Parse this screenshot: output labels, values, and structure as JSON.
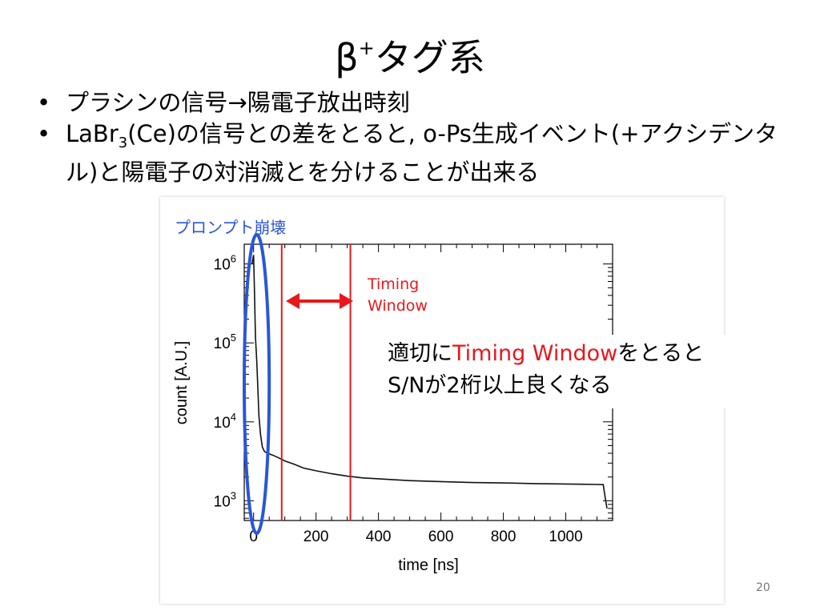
{
  "slide": {
    "title_main": "β",
    "title_sup": "+",
    "title_rest": "タグ系",
    "bullets": [
      {
        "text": "プラシンの信号→陽電子放出時刻"
      },
      {
        "text_a": "LaBr",
        "sub": "3",
        "text_b": "(Ce)の信号との差をとると, o-Ps生成イベント(+アクシデンタル)と陽電子の対消滅とを分けることが出来る"
      }
    ],
    "page_number": "20"
  },
  "annotations": {
    "prompt_label": "プロンプト崩壊",
    "timing_window": [
      "Timing",
      "Window"
    ],
    "callout": {
      "pre": "適切に",
      "red": "Timing Window",
      "post": "をとると",
      "line2": "S/Nが2桁以上良くなる"
    },
    "colors": {
      "prompt": "#2a56d8",
      "timing": "#e8171c"
    }
  },
  "chart_data": {
    "type": "line",
    "xlabel": "time [ns]",
    "ylabel": "count [A.U.]",
    "xlim": [
      -30,
      1150
    ],
    "ylim_log10": [
      2.75,
      6.25
    ],
    "yscale": "log",
    "x_ticks": [
      0,
      200,
      400,
      600,
      800,
      1000
    ],
    "y_ticks": [
      {
        "exp": 3,
        "base": "10",
        "sup": "3"
      },
      {
        "exp": 4,
        "base": "10",
        "sup": "4"
      },
      {
        "exp": 5,
        "base": "10",
        "sup": "5"
      },
      {
        "exp": 6,
        "base": "10",
        "sup": "6"
      }
    ],
    "series": [
      {
        "x": [
          -5,
          0,
          3,
          6,
          10,
          13,
          17,
          22,
          28,
          35,
          45,
          60,
          80,
          100,
          130,
          160,
          200,
          250,
          300,
          350,
          400,
          500,
          600,
          700,
          800,
          900,
          1000,
          1050,
          1100,
          1120,
          1128,
          1132
        ],
        "y": [
          1000000,
          1300000,
          400000,
          120000,
          60000,
          30000,
          12000,
          7000,
          4800,
          4200,
          4000,
          3800,
          3500,
          3200,
          2900,
          2600,
          2400,
          2200,
          2050,
          1950,
          1900,
          1800,
          1750,
          1700,
          1680,
          1650,
          1630,
          1620,
          1610,
          1600,
          1000,
          800
        ]
      }
    ],
    "timing_window_lines": [
      90,
      310
    ],
    "prompt_region": [
      -30,
      50
    ]
  }
}
